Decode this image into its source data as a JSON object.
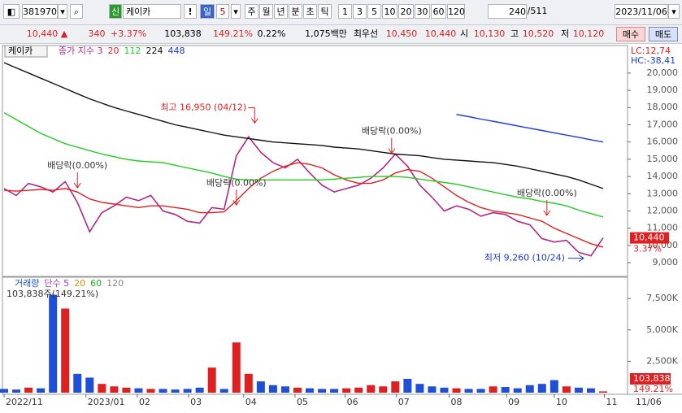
{
  "toolbar": {
    "code": "381970",
    "badge": "신",
    "name": "케이카",
    "alert": "!",
    "period": "일",
    "period_n": "5",
    "units": [
      "주",
      "월",
      "년",
      "분",
      "초",
      "틱"
    ],
    "nums": [
      "1",
      "3",
      "5",
      "10",
      "20",
      "30",
      "60",
      "120"
    ],
    "count": "240",
    "total": "/511",
    "date": "2023/11/06"
  },
  "quote": {
    "price": "10,440 ▲",
    "change": "340",
    "pct": "+3.37%",
    "volume": "103,838",
    "vol_ratio": "149.21%",
    "turnover": "0.22%",
    "amount": "1,075백만",
    "best_label": "최우선",
    "ask": "10,450",
    "bid": "10,440",
    "open_label": "시",
    "open": "10,130",
    "high_label": "고",
    "high": "10,520",
    "low_label": "저",
    "low": "10,120",
    "buy": "매수",
    "sell": "매도"
  },
  "chart_data": [
    {
      "type": "line",
      "title": "케이카",
      "lc": "LC:12,74",
      "hc": "HC:-38,41",
      "last_label": "10,440",
      "last_pct": "3.37%",
      "xlim": [
        0,
        49
      ],
      "ylim": [
        8300,
        21500
      ],
      "yticks": [
        {
          "value": 9000,
          "label": "9,000"
        },
        {
          "value": 10000,
          "label": "10,000"
        },
        {
          "value": 11000,
          "label": "11,000"
        },
        {
          "value": 12000,
          "label": "12,000"
        },
        {
          "value": 13000,
          "label": "13,000"
        },
        {
          "value": 14000,
          "label": "14,000"
        },
        {
          "value": 15000,
          "label": "15,000"
        },
        {
          "value": 16000,
          "label": "16,000"
        },
        {
          "value": 17000,
          "label": "17,000"
        },
        {
          "value": 18000,
          "label": "18,000"
        },
        {
          "value": 19000,
          "label": "19,000"
        },
        {
          "value": 20000,
          "label": "20,000"
        }
      ],
      "series": [
        {
          "name": "종가 지수 3",
          "color": "#b0288a",
          "values": [
            13300,
            12900,
            13600,
            13400,
            13100,
            13700,
            12500,
            10800,
            11900,
            12300,
            12800,
            12600,
            12900,
            12000,
            11800,
            11400,
            11300,
            12200,
            12100,
            15200,
            16300,
            15400,
            14800,
            14500,
            15000,
            14200,
            13500,
            13100,
            13300,
            13500,
            13900,
            14500,
            15300,
            14600,
            13500,
            12800,
            12000,
            12300,
            12100,
            11700,
            11900,
            11800,
            11400,
            11200,
            10400,
            10200,
            10300,
            9600,
            9400,
            10440
          ]
        },
        {
          "name": "20",
          "color": "#e02020",
          "values": [
            13200,
            13150,
            13200,
            13250,
            13200,
            13300,
            13100,
            12700,
            12500,
            12400,
            12300,
            12200,
            12300,
            12300,
            12200,
            12100,
            11900,
            11900,
            11950,
            12600,
            13300,
            13900,
            14300,
            14600,
            14800,
            14700,
            14500,
            14100,
            13800,
            13600,
            13600,
            13800,
            14200,
            14400,
            14300,
            13900,
            13400,
            12900,
            12500,
            12200,
            12000,
            11900,
            11800,
            11600,
            11400,
            11000,
            10700,
            10400,
            10100,
            9900
          ]
        },
        {
          "name": "112",
          "color": "#22cc22",
          "values": [
            17700,
            17300,
            16900,
            16500,
            16200,
            15900,
            15700,
            15500,
            15300,
            15150,
            15000,
            14900,
            14850,
            14800,
            14650,
            14500,
            14350,
            14200,
            14000,
            13850,
            13800,
            13800,
            13800,
            13800,
            13800,
            13800,
            13800,
            13850,
            13900,
            13950,
            14000,
            14000,
            14000,
            13950,
            13850,
            13750,
            13650,
            13550,
            13400,
            13250,
            13100,
            12950,
            12800,
            12700,
            12550,
            12450,
            12300,
            12050,
            11850,
            11650
          ]
        },
        {
          "name": "224",
          "color": "#111111",
          "values": [
            20600,
            20300,
            20000,
            19700,
            19400,
            19100,
            18800,
            18500,
            18250,
            18000,
            17800,
            17600,
            17400,
            17200,
            17000,
            16850,
            16700,
            16550,
            16400,
            16300,
            16200,
            16100,
            16000,
            15950,
            15900,
            15850,
            15800,
            15700,
            15650,
            15600,
            15500,
            15400,
            15300,
            15250,
            15200,
            15100,
            15000,
            14950,
            14900,
            14850,
            14800,
            14700,
            14600,
            14450,
            14300,
            14150,
            14000,
            13800,
            13550,
            13300
          ]
        },
        {
          "name": "448",
          "color": "#1a3ad8",
          "values": [
            null,
            null,
            null,
            null,
            null,
            null,
            null,
            null,
            null,
            null,
            null,
            null,
            null,
            null,
            null,
            null,
            null,
            null,
            null,
            null,
            null,
            null,
            null,
            null,
            null,
            null,
            null,
            null,
            null,
            null,
            null,
            null,
            null,
            null,
            null,
            null,
            null,
            17600,
            17470,
            17330,
            17200,
            17070,
            16930,
            16800,
            16670,
            16530,
            16400,
            16270,
            16130,
            16000
          ]
        }
      ],
      "annotations": [
        {
          "text": "최고 16,950 (04/12)",
          "x": 20.5,
          "y": 16950,
          "arrow": "down-left"
        },
        {
          "text": "배당락(0.00%)",
          "x": 6,
          "y": 13200,
          "arrow": "down"
        },
        {
          "text": "배당락(0.00%)",
          "x": 19,
          "y": 12200,
          "arrow": "down"
        },
        {
          "text": "배당락(0.00%)",
          "x": 31.7,
          "y": 15200,
          "arrow": "down"
        },
        {
          "text": "배당락(0.00%)",
          "x": 44.4,
          "y": 11600,
          "arrow": "down"
        },
        {
          "text": "최저 9,260 (10/24)",
          "x": 47.6,
          "y": 9260,
          "arrow": "right"
        }
      ]
    },
    {
      "type": "bar",
      "title": "거래량",
      "info": "103,838주(149.21%)",
      "last_label": "103,838",
      "last_pct": "149.21%",
      "last_date": "11/06",
      "xlim": [
        0,
        49
      ],
      "ylim": [
        0,
        9000
      ],
      "yticks": [
        {
          "value": 2500,
          "label": "2,500K"
        },
        {
          "value": 5000,
          "label": "5,000K"
        },
        {
          "value": 7500,
          "label": "7,500K"
        }
      ],
      "xticks": [
        {
          "value": 0,
          "label": "2022/11"
        },
        {
          "value": 6.7,
          "label": "2023/01"
        },
        {
          "value": 10.9,
          "label": "02"
        },
        {
          "value": 15.1,
          "label": "03"
        },
        {
          "value": 19.6,
          "label": "04"
        },
        {
          "value": 23.8,
          "label": "05"
        },
        {
          "value": 27.9,
          "label": "06"
        },
        {
          "value": 32.1,
          "label": "07"
        },
        {
          "value": 36.4,
          "label": "08"
        },
        {
          "value": 41.1,
          "label": "09"
        },
        {
          "value": 45,
          "label": "10"
        },
        {
          "value": 49.1,
          "label": "11"
        }
      ],
      "ma_legend": [
        {
          "name": "단수 5",
          "color": "#a040c0"
        },
        {
          "name": "20",
          "color": "#e09000"
        },
        {
          "name": "60",
          "color": "#22aa22"
        },
        {
          "name": "120",
          "color": "#888888"
        }
      ],
      "series": [
        {
          "name": "거래량",
          "color": "#1f4fd8",
          "up_color": "#e02020",
          "values": [
            300,
            250,
            400,
            350,
            7800,
            6700,
            1500,
            1200,
            700,
            500,
            400,
            350,
            300,
            300,
            250,
            300,
            400,
            2000,
            300,
            4000,
            1500,
            900,
            600,
            500,
            400,
            350,
            300,
            300,
            350,
            400,
            600,
            500,
            900,
            1100,
            700,
            500,
            400,
            350,
            300,
            300,
            500,
            450,
            350,
            600,
            700,
            1000,
            500,
            400,
            350,
            103.838
          ]
        }
      ]
    }
  ]
}
